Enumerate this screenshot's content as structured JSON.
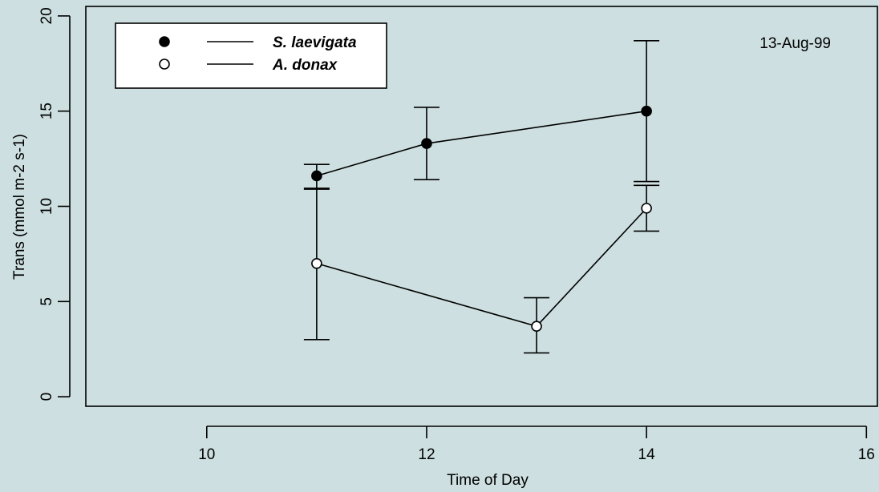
{
  "chart_data": {
    "type": "scatter",
    "xlabel": "Time of Day",
    "ylabel": "Trans (mmol m-2 s-1)",
    "xlim": [
      8.9,
      16.1
    ],
    "ylim": [
      -0.5,
      20.5
    ],
    "x_ticks": [
      10,
      12,
      14,
      16
    ],
    "y_ticks": [
      0,
      5,
      10,
      15,
      20
    ],
    "annotation": "13-Aug-99",
    "legend_position": "top-left",
    "grid": false,
    "series": [
      {
        "name": "S. laevigata",
        "marker": "filled-circle",
        "x": [
          11,
          12,
          14
        ],
        "y": [
          11.6,
          13.3,
          15.0
        ],
        "err_low": [
          10.9,
          11.4,
          11.3
        ],
        "err_high": [
          12.2,
          15.2,
          18.7
        ]
      },
      {
        "name": "A. donax",
        "marker": "open-circle",
        "x": [
          11,
          13,
          14
        ],
        "y": [
          7.0,
          3.7,
          9.9
        ],
        "err_low": [
          3.0,
          2.3,
          8.7
        ],
        "err_high": [
          10.95,
          5.2,
          11.1
        ]
      }
    ]
  }
}
